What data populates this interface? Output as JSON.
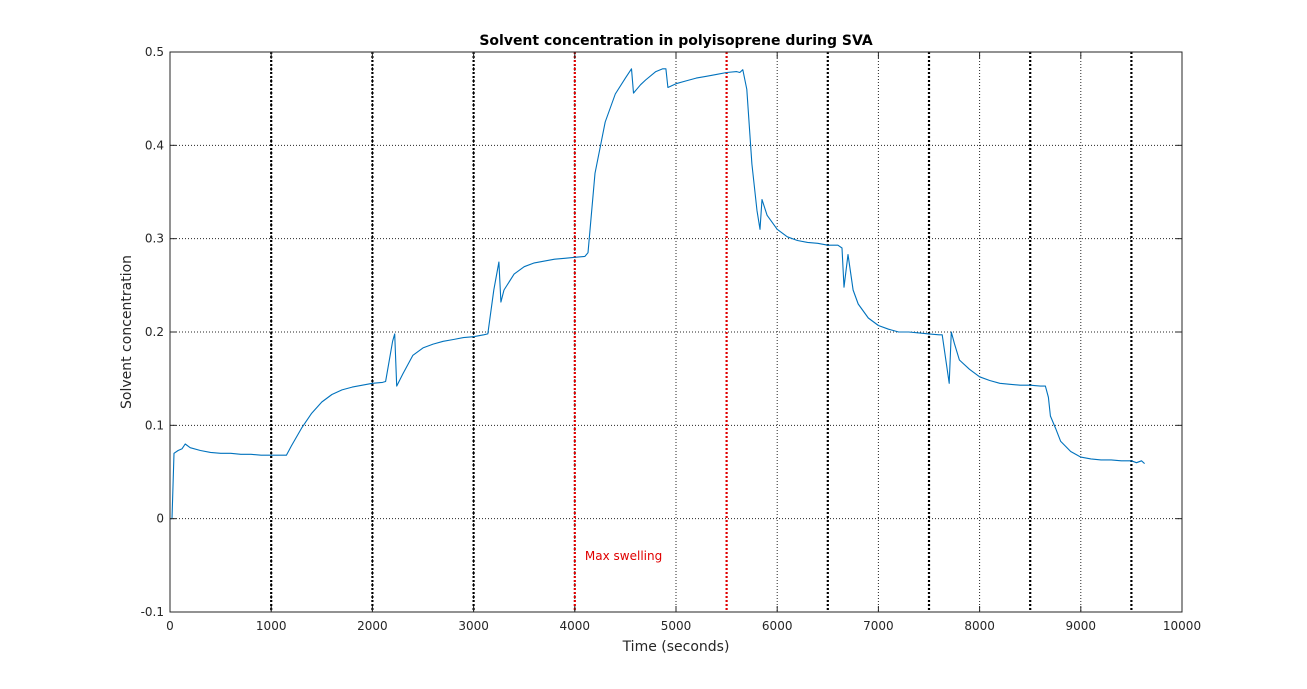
{
  "chart_data": {
    "type": "line",
    "title": "Solvent concentration in polyisoprene during SVA",
    "xlabel": "Time (seconds)",
    "ylabel": "Solvent concentration",
    "xlim": [
      0,
      10000
    ],
    "ylim": [
      -0.1,
      0.5
    ],
    "xticks": [
      0,
      1000,
      2000,
      3000,
      4000,
      5000,
      6000,
      7000,
      8000,
      9000,
      10000
    ],
    "yticks": [
      -0.1,
      0,
      0.1,
      0.2,
      0.3,
      0.4,
      0.5
    ],
    "grid": true,
    "line_color": "#0072bd",
    "series": [
      {
        "x": [
          0,
          20,
          40,
          80,
          120,
          150,
          200,
          300,
          400,
          500,
          600,
          700,
          800,
          900,
          1000,
          1100,
          1150,
          1200,
          1300,
          1400,
          1500,
          1600,
          1700,
          1800,
          1900,
          2000,
          2100,
          2130,
          2200,
          2220,
          2240,
          2300,
          2400,
          2500,
          2600,
          2700,
          2800,
          2900,
          3000,
          3100,
          3140,
          3200,
          3250,
          3270,
          3300,
          3400,
          3500,
          3600,
          3700,
          3800,
          3900,
          4000,
          4100,
          4130,
          4200,
          4300,
          4400,
          4500,
          4560,
          4580,
          4650,
          4700,
          4800,
          4870,
          4900,
          4920,
          5000,
          5100,
          5200,
          5300,
          5400,
          5500,
          5600,
          5630,
          5660,
          5700,
          5750,
          5800,
          5830,
          5850,
          5900,
          6000,
          6100,
          6200,
          6300,
          6400,
          6500,
          6600,
          6640,
          6660,
          6700,
          6730,
          6750,
          6800,
          6900,
          7000,
          7100,
          7200,
          7300,
          7400,
          7500,
          7600,
          7630,
          7700,
          7720,
          7750,
          7800,
          7900,
          8000,
          8100,
          8200,
          8300,
          8400,
          8500,
          8600,
          8650,
          8680,
          8700,
          8750,
          8800,
          8900,
          9000,
          9100,
          9200,
          9300,
          9400,
          9500,
          9550,
          9600,
          9630
        ],
        "y": [
          0,
          0.0,
          0.07,
          0.073,
          0.075,
          0.08,
          0.076,
          0.073,
          0.071,
          0.07,
          0.07,
          0.069,
          0.069,
          0.068,
          0.068,
          0.068,
          0.068,
          0.078,
          0.097,
          0.113,
          0.125,
          0.133,
          0.138,
          0.141,
          0.143,
          0.145,
          0.146,
          0.147,
          0.19,
          0.198,
          0.142,
          0.155,
          0.175,
          0.183,
          0.187,
          0.19,
          0.192,
          0.194,
          0.195,
          0.197,
          0.198,
          0.245,
          0.275,
          0.232,
          0.245,
          0.262,
          0.27,
          0.274,
          0.276,
          0.278,
          0.279,
          0.28,
          0.281,
          0.285,
          0.37,
          0.425,
          0.455,
          0.472,
          0.482,
          0.456,
          0.465,
          0.47,
          0.479,
          0.482,
          0.482,
          0.462,
          0.466,
          0.469,
          0.472,
          0.474,
          0.476,
          0.478,
          0.479,
          0.478,
          0.481,
          0.46,
          0.38,
          0.33,
          0.31,
          0.342,
          0.325,
          0.31,
          0.302,
          0.298,
          0.296,
          0.295,
          0.293,
          0.293,
          0.29,
          0.248,
          0.283,
          0.26,
          0.245,
          0.23,
          0.215,
          0.207,
          0.203,
          0.2,
          0.2,
          0.199,
          0.198,
          0.197,
          0.197,
          0.145,
          0.2,
          0.188,
          0.17,
          0.16,
          0.152,
          0.148,
          0.145,
          0.144,
          0.143,
          0.143,
          0.142,
          0.142,
          0.13,
          0.11,
          0.097,
          0.083,
          0.072,
          0.066,
          0.064,
          0.063,
          0.063,
          0.062,
          0.062,
          0.06,
          0.062,
          0.059
        ]
      }
    ],
    "vlines": [
      {
        "x": 1000,
        "color": "#000000"
      },
      {
        "x": 2000,
        "color": "#000000"
      },
      {
        "x": 3000,
        "color": "#000000"
      },
      {
        "x": 4000,
        "color": "#e00000"
      },
      {
        "x": 5500,
        "color": "#e00000"
      },
      {
        "x": 6500,
        "color": "#000000"
      },
      {
        "x": 7500,
        "color": "#000000"
      },
      {
        "x": 8500,
        "color": "#000000"
      },
      {
        "x": 9500,
        "color": "#000000"
      }
    ],
    "annotations": [
      {
        "text": "Max swelling",
        "x": 4100,
        "y": -0.04,
        "color": "#e00000"
      }
    ]
  }
}
